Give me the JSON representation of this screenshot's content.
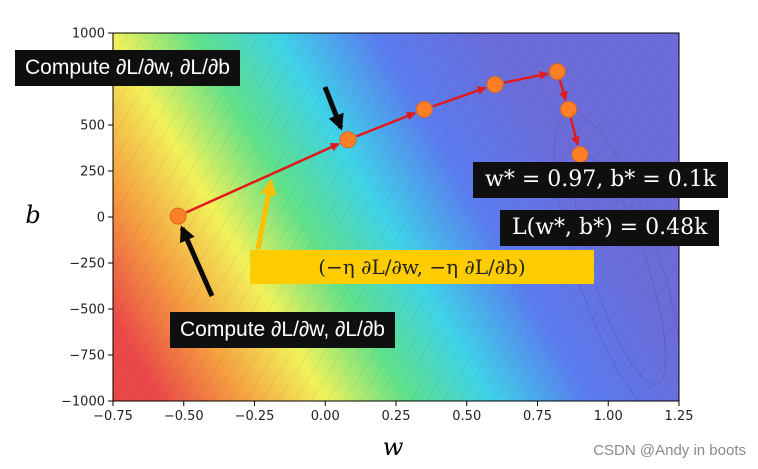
{
  "chart_data": {
    "type": "line",
    "xlabel": "w",
    "ylabel": "b",
    "xlim": [
      -0.75,
      1.25
    ],
    "ylim": [
      -1000,
      1000
    ],
    "xticks": [
      "−0.75",
      "−0.50",
      "−0.25",
      "0.00",
      "0.25",
      "0.50",
      "0.75",
      "1.00",
      "1.25"
    ],
    "yticks": [
      "1000",
      "750",
      "500",
      "250",
      "0",
      "−250",
      "−500",
      "−750",
      "−1000"
    ],
    "background": "loss contour (red → yellow → green → cyan → blue → purple)",
    "series": [
      {
        "x": [
          -0.52,
          0.08,
          0.35,
          0.6,
          0.82,
          0.86,
          0.9
        ],
        "y": [
          5,
          420,
          585,
          720,
          790,
          585,
          340
        ]
      }
    ]
  },
  "annotations": {
    "top_box": "Compute ∂L/∂w, ∂L/∂b",
    "bottom_box": "Compute ∂L/∂w, ∂L/∂b",
    "step_box": "(−η ∂L/∂w, −η ∂L/∂b)",
    "w_star_box": "w* = 0.97, b* = 0.1k",
    "loss_box": "L(w*, b*) = 0.48k"
  },
  "watermark": "CSDN @Andy in boots",
  "colors": {
    "path_points": "#ff7f27",
    "arrows": "#e31a1c",
    "step_arrow": "#ffc000",
    "label_bg": "#0f0f0f"
  }
}
